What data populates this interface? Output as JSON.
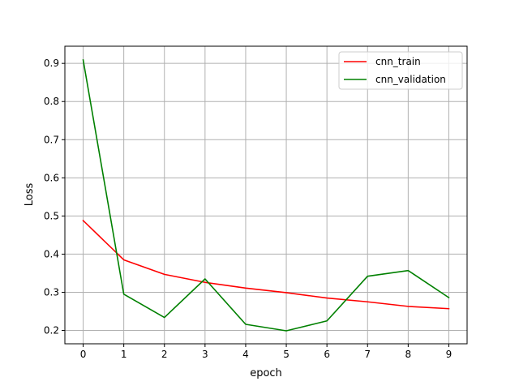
{
  "chart_data": {
    "type": "line",
    "title": "",
    "xlabel": "epoch",
    "ylabel": "Loss",
    "x": [
      0,
      1,
      2,
      3,
      4,
      5,
      6,
      7,
      8,
      9
    ],
    "xlim": [
      -0.45,
      9.45
    ],
    "ylim": [
      0.165,
      0.945
    ],
    "xticks": [
      "0",
      "1",
      "2",
      "3",
      "4",
      "5",
      "6",
      "7",
      "8",
      "9"
    ],
    "yticks": [
      "0.2",
      "0.3",
      "0.4",
      "0.5",
      "0.6",
      "0.7",
      "0.8",
      "0.9"
    ],
    "grid": true,
    "legend_position": "top-right",
    "series": [
      {
        "name": "cnn_train",
        "color": "#ff0000",
        "values": [
          0.488,
          0.385,
          0.347,
          0.326,
          0.311,
          0.299,
          0.285,
          0.275,
          0.263,
          0.257
        ]
      },
      {
        "name": "cnn_validation",
        "color": "#008000",
        "values": [
          0.909,
          0.295,
          0.234,
          0.335,
          0.216,
          0.199,
          0.225,
          0.342,
          0.357,
          0.286
        ]
      }
    ]
  }
}
